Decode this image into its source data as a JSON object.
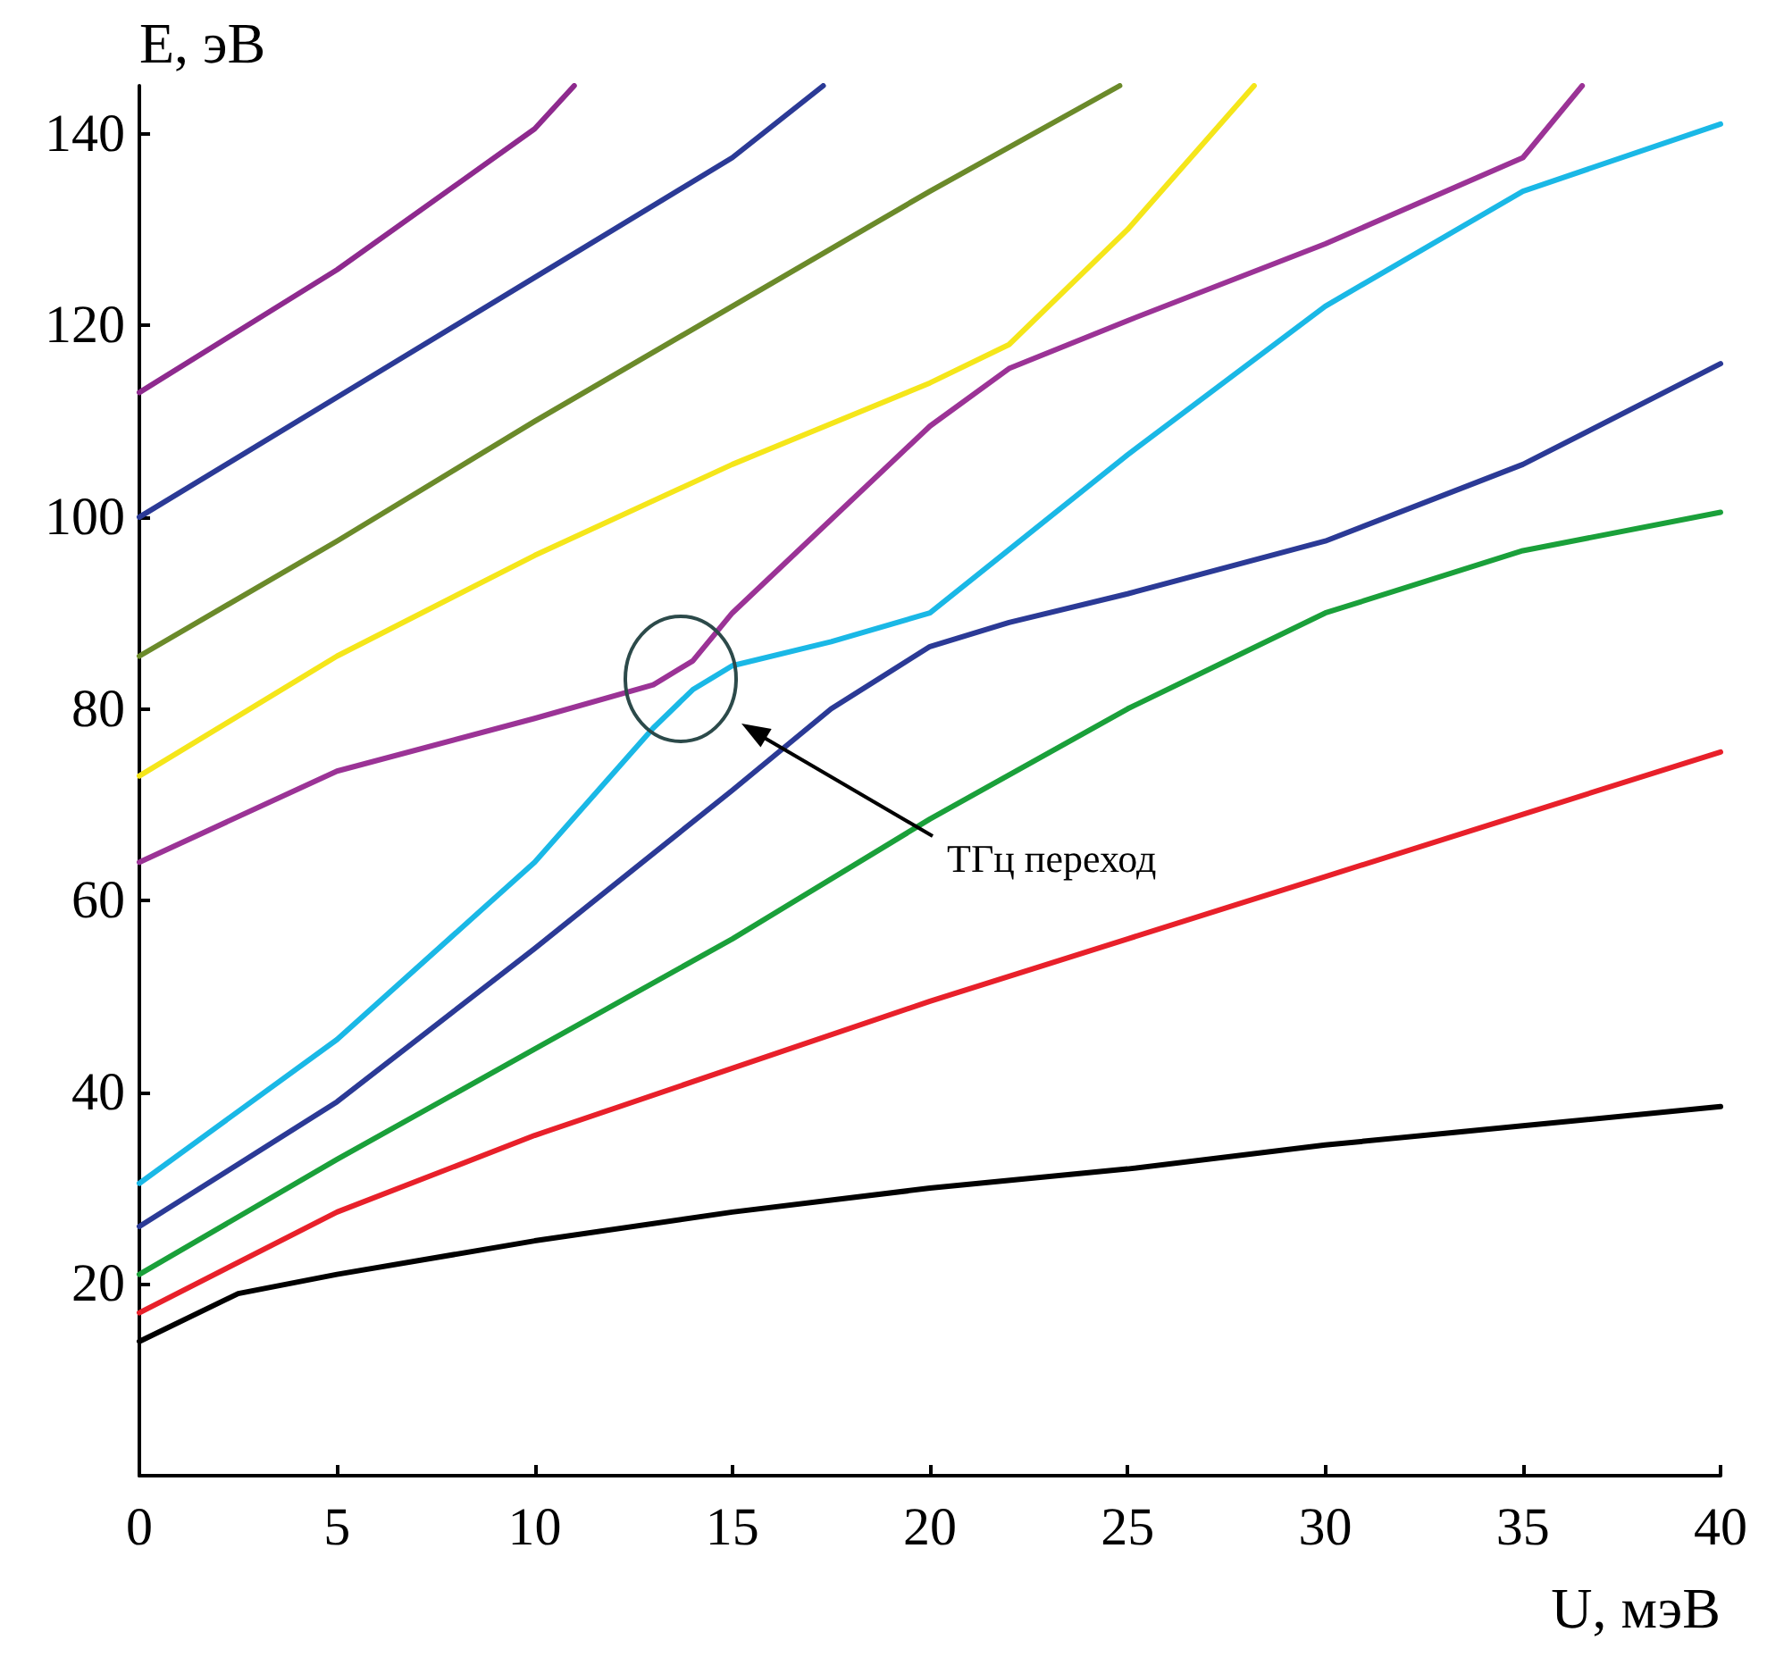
{
  "chart_data": {
    "type": "line",
    "xlabel": "U, мэВ",
    "ylabel": "E, эВ",
    "xlim": [
      0,
      40
    ],
    "xticks": [
      0,
      5,
      10,
      15,
      20,
      25,
      30,
      35,
      40
    ],
    "ylim": [
      0,
      145
    ],
    "yticks": [
      20,
      40,
      60,
      80,
      100,
      120,
      140
    ],
    "grid": false,
    "marker": "none",
    "line_style": "solid",
    "annotations": [
      "ТГц переход"
    ],
    "series": [
      {
        "color": "#000000",
        "x": [
          0,
          2.5,
          5,
          10,
          15,
          20,
          25,
          30,
          35,
          40
        ],
        "values": [
          14,
          19,
          21,
          24.5,
          27.5,
          30,
          32,
          34.5,
          36.5,
          38.5
        ]
      },
      {
        "color": "#e8202a",
        "x": [
          0,
          5,
          10,
          15,
          20,
          25,
          30,
          35,
          40
        ],
        "values": [
          17,
          27.5,
          35.5,
          42.5,
          49.5,
          56,
          62.5,
          69,
          75.5
        ]
      },
      {
        "color": "#1aa03a",
        "x": [
          0,
          5,
          10,
          15,
          20,
          25,
          30,
          35,
          40
        ],
        "values": [
          21,
          33,
          44.5,
          56,
          68.5,
          80,
          90,
          96.5,
          100.5
        ]
      },
      {
        "color": "#2b3a96",
        "x": [
          0,
          5,
          10,
          15,
          17.5,
          20,
          22,
          25,
          30,
          35,
          40
        ],
        "values": [
          26,
          39,
          55,
          71.5,
          80,
          86.5,
          89,
          92,
          97.5,
          105.5,
          116
        ]
      },
      {
        "color": "#1ab8e6",
        "x": [
          0,
          5,
          10,
          13,
          14,
          15,
          17.5,
          20,
          25,
          30,
          35,
          40
        ],
        "values": [
          30.5,
          45.5,
          64,
          78,
          82,
          84.5,
          87,
          90,
          106.5,
          122,
          134,
          141
        ]
      },
      {
        "color": "#9b3396",
        "x": [
          0,
          5,
          10,
          13,
          14,
          15,
          20,
          22,
          25,
          30,
          35,
          36.5
        ],
        "values": [
          64,
          73.5,
          79,
          82.5,
          85,
          90,
          109.5,
          115.5,
          120.5,
          128.5,
          137.5,
          145
        ]
      },
      {
        "color": "#f5e61a",
        "x": [
          0,
          5,
          10,
          15,
          20,
          22,
          25,
          28.2
        ],
        "values": [
          73,
          85.5,
          96,
          105.5,
          114,
          118,
          130,
          145
        ]
      },
      {
        "color": "#6b8a2a",
        "x": [
          0,
          5,
          10,
          15,
          20,
          24.8
        ],
        "values": [
          85.5,
          97.5,
          110,
          122,
          134,
          145
        ]
      },
      {
        "color": "#2b3a96",
        "x": [
          0,
          5,
          10,
          15,
          17.3
        ],
        "values": [
          100,
          112.5,
          125,
          137.5,
          145
        ]
      },
      {
        "color": "#8e2a8e",
        "x": [
          0,
          5,
          10,
          11
        ],
        "values": [
          113,
          125.8,
          140.5,
          145
        ]
      }
    ]
  }
}
